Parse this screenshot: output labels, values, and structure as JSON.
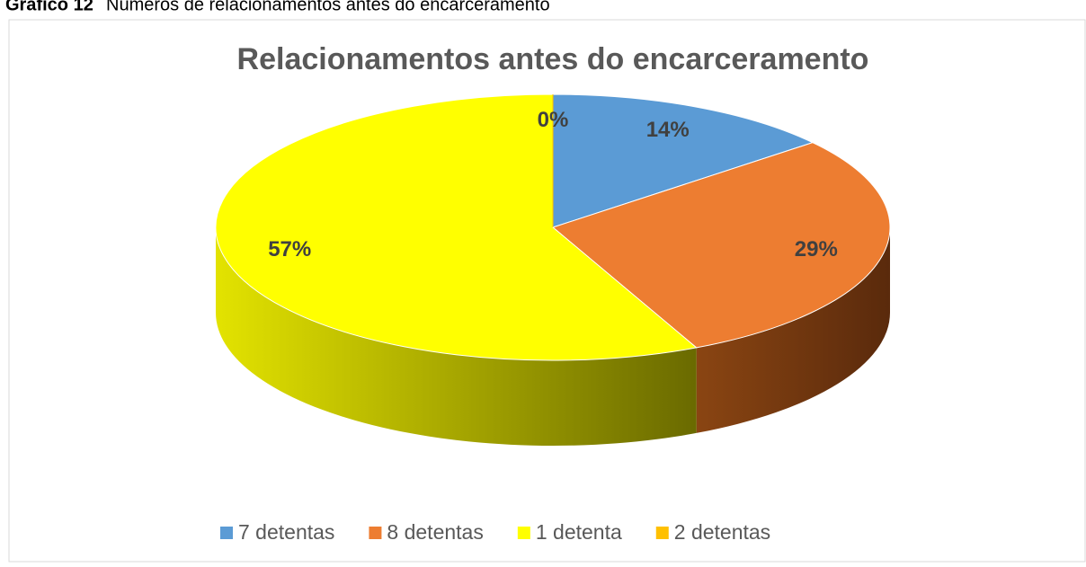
{
  "caption": {
    "label": "Gráfico 12",
    "text": "Números de relacionamentos antes do encarceramento"
  },
  "chart_data": {
    "type": "pie3d",
    "title": "Relacionamentos antes do encarceramento",
    "categories": [
      "7 detentas",
      "8 detentas",
      "1 detenta",
      "2 detentas"
    ],
    "values": [
      14,
      29,
      57,
      0
    ],
    "value_labels": [
      "14%",
      "29%",
      "57%",
      "0%"
    ],
    "colors": [
      "#5b9bd5",
      "#ed7d31",
      "#ffff00",
      "#ffc000"
    ],
    "legend": "bottom"
  }
}
